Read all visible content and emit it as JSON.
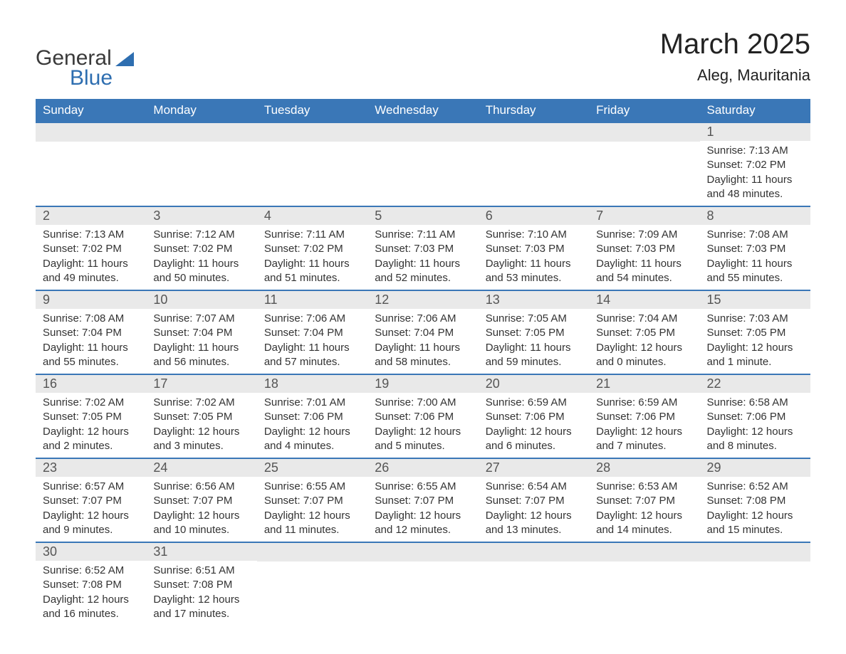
{
  "logo": {
    "line1": "General",
    "line2": "Blue",
    "shape_color": "#2e6eb0"
  },
  "title": "March 2025",
  "location": "Aleg, Mauritania",
  "colors": {
    "header_bg": "#3a77b7",
    "header_fg": "#ffffff",
    "daynum_bg": "#e9e9e9",
    "text": "#333333",
    "rule": "#3a77b7"
  },
  "weekdays": [
    "Sunday",
    "Monday",
    "Tuesday",
    "Wednesday",
    "Thursday",
    "Friday",
    "Saturday"
  ],
  "weeks": [
    [
      null,
      null,
      null,
      null,
      null,
      null,
      {
        "n": "1",
        "sr": "Sunrise: 7:13 AM",
        "ss": "Sunset: 7:02 PM",
        "dl": "Daylight: 11 hours and 48 minutes."
      }
    ],
    [
      {
        "n": "2",
        "sr": "Sunrise: 7:13 AM",
        "ss": "Sunset: 7:02 PM",
        "dl": "Daylight: 11 hours and 49 minutes."
      },
      {
        "n": "3",
        "sr": "Sunrise: 7:12 AM",
        "ss": "Sunset: 7:02 PM",
        "dl": "Daylight: 11 hours and 50 minutes."
      },
      {
        "n": "4",
        "sr": "Sunrise: 7:11 AM",
        "ss": "Sunset: 7:02 PM",
        "dl": "Daylight: 11 hours and 51 minutes."
      },
      {
        "n": "5",
        "sr": "Sunrise: 7:11 AM",
        "ss": "Sunset: 7:03 PM",
        "dl": "Daylight: 11 hours and 52 minutes."
      },
      {
        "n": "6",
        "sr": "Sunrise: 7:10 AM",
        "ss": "Sunset: 7:03 PM",
        "dl": "Daylight: 11 hours and 53 minutes."
      },
      {
        "n": "7",
        "sr": "Sunrise: 7:09 AM",
        "ss": "Sunset: 7:03 PM",
        "dl": "Daylight: 11 hours and 54 minutes."
      },
      {
        "n": "8",
        "sr": "Sunrise: 7:08 AM",
        "ss": "Sunset: 7:03 PM",
        "dl": "Daylight: 11 hours and 55 minutes."
      }
    ],
    [
      {
        "n": "9",
        "sr": "Sunrise: 7:08 AM",
        "ss": "Sunset: 7:04 PM",
        "dl": "Daylight: 11 hours and 55 minutes."
      },
      {
        "n": "10",
        "sr": "Sunrise: 7:07 AM",
        "ss": "Sunset: 7:04 PM",
        "dl": "Daylight: 11 hours and 56 minutes."
      },
      {
        "n": "11",
        "sr": "Sunrise: 7:06 AM",
        "ss": "Sunset: 7:04 PM",
        "dl": "Daylight: 11 hours and 57 minutes."
      },
      {
        "n": "12",
        "sr": "Sunrise: 7:06 AM",
        "ss": "Sunset: 7:04 PM",
        "dl": "Daylight: 11 hours and 58 minutes."
      },
      {
        "n": "13",
        "sr": "Sunrise: 7:05 AM",
        "ss": "Sunset: 7:05 PM",
        "dl": "Daylight: 11 hours and 59 minutes."
      },
      {
        "n": "14",
        "sr": "Sunrise: 7:04 AM",
        "ss": "Sunset: 7:05 PM",
        "dl": "Daylight: 12 hours and 0 minutes."
      },
      {
        "n": "15",
        "sr": "Sunrise: 7:03 AM",
        "ss": "Sunset: 7:05 PM",
        "dl": "Daylight: 12 hours and 1 minute."
      }
    ],
    [
      {
        "n": "16",
        "sr": "Sunrise: 7:02 AM",
        "ss": "Sunset: 7:05 PM",
        "dl": "Daylight: 12 hours and 2 minutes."
      },
      {
        "n": "17",
        "sr": "Sunrise: 7:02 AM",
        "ss": "Sunset: 7:05 PM",
        "dl": "Daylight: 12 hours and 3 minutes."
      },
      {
        "n": "18",
        "sr": "Sunrise: 7:01 AM",
        "ss": "Sunset: 7:06 PM",
        "dl": "Daylight: 12 hours and 4 minutes."
      },
      {
        "n": "19",
        "sr": "Sunrise: 7:00 AM",
        "ss": "Sunset: 7:06 PM",
        "dl": "Daylight: 12 hours and 5 minutes."
      },
      {
        "n": "20",
        "sr": "Sunrise: 6:59 AM",
        "ss": "Sunset: 7:06 PM",
        "dl": "Daylight: 12 hours and 6 minutes."
      },
      {
        "n": "21",
        "sr": "Sunrise: 6:59 AM",
        "ss": "Sunset: 7:06 PM",
        "dl": "Daylight: 12 hours and 7 minutes."
      },
      {
        "n": "22",
        "sr": "Sunrise: 6:58 AM",
        "ss": "Sunset: 7:06 PM",
        "dl": "Daylight: 12 hours and 8 minutes."
      }
    ],
    [
      {
        "n": "23",
        "sr": "Sunrise: 6:57 AM",
        "ss": "Sunset: 7:07 PM",
        "dl": "Daylight: 12 hours and 9 minutes."
      },
      {
        "n": "24",
        "sr": "Sunrise: 6:56 AM",
        "ss": "Sunset: 7:07 PM",
        "dl": "Daylight: 12 hours and 10 minutes."
      },
      {
        "n": "25",
        "sr": "Sunrise: 6:55 AM",
        "ss": "Sunset: 7:07 PM",
        "dl": "Daylight: 12 hours and 11 minutes."
      },
      {
        "n": "26",
        "sr": "Sunrise: 6:55 AM",
        "ss": "Sunset: 7:07 PM",
        "dl": "Daylight: 12 hours and 12 minutes."
      },
      {
        "n": "27",
        "sr": "Sunrise: 6:54 AM",
        "ss": "Sunset: 7:07 PM",
        "dl": "Daylight: 12 hours and 13 minutes."
      },
      {
        "n": "28",
        "sr": "Sunrise: 6:53 AM",
        "ss": "Sunset: 7:07 PM",
        "dl": "Daylight: 12 hours and 14 minutes."
      },
      {
        "n": "29",
        "sr": "Sunrise: 6:52 AM",
        "ss": "Sunset: 7:08 PM",
        "dl": "Daylight: 12 hours and 15 minutes."
      }
    ],
    [
      {
        "n": "30",
        "sr": "Sunrise: 6:52 AM",
        "ss": "Sunset: 7:08 PM",
        "dl": "Daylight: 12 hours and 16 minutes."
      },
      {
        "n": "31",
        "sr": "Sunrise: 6:51 AM",
        "ss": "Sunset: 7:08 PM",
        "dl": "Daylight: 12 hours and 17 minutes."
      },
      null,
      null,
      null,
      null,
      null
    ]
  ]
}
